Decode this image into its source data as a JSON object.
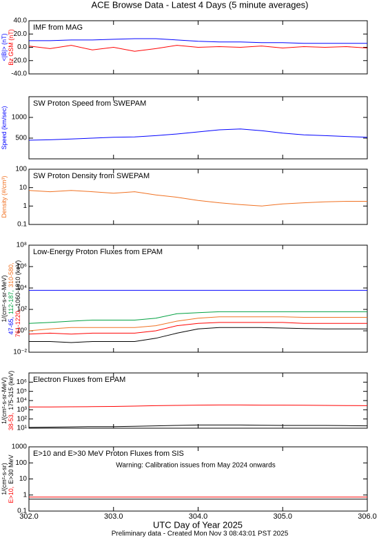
{
  "title": "ACE Browse Data - Latest 4 Days (5 minute averages)",
  "xlabel": "UTC Day of Year 2025",
  "footer": "Preliminary data - Created Mon Nov  3 08:43:01 PST 2025",
  "chart_data": [
    {
      "type": "line",
      "title": "IMF from MAG",
      "ylabel": [
        [
          {
            "text": "<|B|> (nT)",
            "color": "#0000ff"
          }
        ],
        [
          {
            "text": "Bz GSM (nT)",
            "color": "#ff0000"
          }
        ]
      ],
      "x": [
        302,
        302.25,
        302.5,
        302.75,
        303,
        303.25,
        303.5,
        303.75,
        304,
        304.25,
        304.5,
        304.75,
        305,
        305.25,
        305.5,
        305.75,
        306
      ],
      "xlim": [
        302,
        306
      ],
      "xticks": [
        302,
        303,
        304,
        305,
        306
      ],
      "ylim": [
        -40,
        40
      ],
      "yticks": [
        {
          "value": 40,
          "label": "40.0"
        },
        {
          "value": 20,
          "label": "20.0"
        },
        {
          "value": 0,
          "label": "0.0"
        },
        {
          "value": -20,
          "label": "-20.0"
        },
        {
          "value": -40,
          "label": "-40.0"
        }
      ],
      "series": [
        {
          "color": "#0000ff",
          "values": [
            10,
            10,
            11,
            11,
            12,
            13,
            13,
            11,
            9,
            8,
            8,
            7,
            7,
            6,
            6,
            6,
            6
          ]
        },
        {
          "color": "#ff0000",
          "values": [
            2,
            -2,
            3,
            -4,
            0,
            -6,
            -2,
            3,
            0,
            1,
            0,
            2,
            -1,
            1,
            0,
            1,
            -1
          ]
        }
      ]
    },
    {
      "type": "line",
      "title": "SW Proton Speed from SWEPAM",
      "ylabel": [
        [
          {
            "text": "Speed (km/sec)",
            "color": "#0000ff"
          }
        ]
      ],
      "x": [
        302,
        302.25,
        302.5,
        302.75,
        303,
        303.25,
        303.5,
        303.75,
        304,
        304.25,
        304.5,
        304.75,
        305,
        305.25,
        305.5,
        305.75,
        306
      ],
      "xlim": [
        302,
        306
      ],
      "xticks": [
        302,
        303,
        304,
        305,
        306
      ],
      "ylim": [
        0,
        1500
      ],
      "yticks": [
        500,
        1000
      ],
      "series": [
        {
          "color": "#0000ff",
          "values": [
            450,
            460,
            480,
            500,
            520,
            530,
            560,
            600,
            650,
            700,
            720,
            680,
            620,
            580,
            560,
            540,
            520
          ]
        }
      ]
    },
    {
      "type": "line",
      "title": "SW Proton Density from SWEPAM",
      "log_y": true,
      "ylabel": [
        [
          {
            "text": "Density (#/cm³)",
            "color": "#f07020"
          }
        ]
      ],
      "x": [
        302,
        302.25,
        302.5,
        302.75,
        303,
        303.25,
        303.5,
        303.75,
        304,
        304.25,
        304.5,
        304.75,
        305,
        305.25,
        305.5,
        305.75,
        306
      ],
      "xlim": [
        302,
        306
      ],
      "xticks": [
        302,
        303,
        304,
        305,
        306
      ],
      "ylim": [
        0.1,
        100
      ],
      "yticks": [
        0.1,
        1,
        10,
        100
      ],
      "series": [
        {
          "color": "#f07020",
          "values": [
            7,
            6,
            7,
            6,
            5,
            6,
            4,
            3,
            2,
            1.5,
            1.2,
            1.0,
            1.3,
            1.5,
            1.7,
            1.8,
            1.8
          ]
        }
      ]
    },
    {
      "type": "line",
      "title": "Low-Energy Proton Fluxes from EPAM",
      "log_y": true,
      "ylabel": [
        [
          {
            "text": "1/(cm²-s-sr-MeV)",
            "color": "#000000"
          }
        ],
        [
          {
            "text": "47-65,",
            "color": "#0000ff"
          },
          {
            "text": "112-187,",
            "color": "#00a040"
          },
          {
            "text": "310-580,",
            "color": "#f07020"
          }
        ],
        [
          {
            "text": "761-1220,",
            "color": "#ff0000"
          },
          {
            "text": "1060-1910 (keV)",
            "color": "#000000"
          }
        ]
      ],
      "x": [
        302,
        302.25,
        302.5,
        302.75,
        303,
        303.25,
        303.5,
        303.75,
        304,
        304.25,
        304.5,
        304.75,
        305,
        305.25,
        305.5,
        305.75,
        306
      ],
      "xlim": [
        302,
        306
      ],
      "xticks": [
        302,
        303,
        304,
        305,
        306
      ],
      "ylim": [
        0.01,
        100000000
      ],
      "yticks": [
        {
          "value": 0.01,
          "label": "10⁻²"
        },
        {
          "value": 1,
          "label": "10⁰"
        },
        {
          "value": 100,
          "label": "10²"
        },
        {
          "value": 10000,
          "label": "10⁴"
        },
        {
          "value": 1000000,
          "label": "10⁶"
        },
        {
          "value": 100000000,
          "label": "10⁸"
        }
      ],
      "series": [
        {
          "color": "#0000ff",
          "values": [
            6000,
            6000,
            6000,
            6000,
            6000,
            6000,
            6000,
            6000,
            6000,
            6000,
            6000,
            6000,
            6000,
            6000,
            6000,
            6000,
            6000
          ]
        },
        {
          "color": "#00a040",
          "values": [
            5,
            6,
            8,
            10,
            10,
            10,
            15,
            40,
            50,
            60,
            60,
            60,
            60,
            60,
            60,
            60,
            60
          ]
        },
        {
          "color": "#f07020",
          "values": [
            1,
            1.5,
            2,
            2,
            2,
            2,
            3,
            8,
            15,
            20,
            20,
            20,
            20,
            18,
            18,
            18,
            18
          ]
        },
        {
          "color": "#ff0000",
          "values": [
            0.5,
            0.6,
            0.5,
            0.6,
            0.6,
            0.6,
            1,
            3,
            5,
            6,
            6,
            6,
            6,
            5,
            5,
            5,
            5
          ]
        },
        {
          "color": "#000000",
          "values": [
            0.1,
            0.1,
            0.08,
            0.1,
            0.1,
            0.1,
            0.2,
            0.6,
            1.5,
            2,
            2,
            2,
            1.8,
            1.6,
            1.5,
            1.5,
            1.5
          ]
        }
      ]
    },
    {
      "type": "line",
      "title": "Electron Fluxes from EPAM",
      "log_y": true,
      "ylabel": [
        [
          {
            "text": "1/(cm²-s-sr-MeV)",
            "color": "#000000"
          }
        ],
        [
          {
            "text": "38-53,",
            "color": "#ff0000"
          },
          {
            "text": "175-315 (keV)",
            "color": "#000000"
          }
        ]
      ],
      "x": [
        302,
        302.25,
        302.5,
        302.75,
        303,
        303.25,
        303.5,
        303.75,
        304,
        304.25,
        304.5,
        304.75,
        305,
        305.25,
        305.5,
        305.75,
        306
      ],
      "xlim": [
        302,
        306
      ],
      "xticks": [
        302,
        303,
        304,
        305,
        306
      ],
      "ylim": [
        10,
        10000000
      ],
      "yticks": [
        {
          "value": 10,
          "label": "10¹"
        },
        {
          "value": 100,
          "label": "10²"
        },
        {
          "value": 1000,
          "label": "10³"
        },
        {
          "value": 10000,
          "label": "10⁴"
        },
        {
          "value": 100000,
          "label": "10⁵"
        },
        {
          "value": 1000000,
          "label": "10⁶"
        }
      ],
      "series": [
        {
          "color": "#ff0000",
          "values": [
            2000,
            2000,
            2100,
            2200,
            2300,
            2500,
            2800,
            3000,
            3200,
            3300,
            3300,
            3200,
            3200,
            3100,
            3000,
            2900,
            2800
          ]
        },
        {
          "color": "#000000",
          "values": [
            12,
            13,
            14,
            15,
            15,
            16,
            18,
            20,
            22,
            22,
            22,
            21,
            20,
            20,
            20,
            19,
            18
          ]
        }
      ]
    },
    {
      "type": "line",
      "title": "E>10 and E>30 MeV Proton Fluxes from SIS",
      "log_y": true,
      "annotation": "Warning: Calibration issues from May 2024 onwards",
      "annotation_color": "#e02020",
      "ylabel": [
        [
          {
            "text": "1/(cm²-s-sr)",
            "color": "#000000"
          }
        ],
        [
          {
            "text": "E>10,",
            "color": "#ff0000"
          },
          {
            "text": "E>30 MeV",
            "color": "#000000"
          }
        ]
      ],
      "x": [
        302,
        302.25,
        302.5,
        302.75,
        303,
        303.25,
        303.5,
        303.75,
        304,
        304.25,
        304.5,
        304.75,
        305,
        305.25,
        305.5,
        305.75,
        306
      ],
      "xlim": [
        302,
        306
      ],
      "xticks": [
        {
          "value": 302,
          "label": "302.0"
        },
        {
          "value": 303,
          "label": "303.0"
        },
        {
          "value": 304,
          "label": "304.0"
        },
        {
          "value": 305,
          "label": "305.0"
        },
        {
          "value": 306,
          "label": "306.0"
        }
      ],
      "ylim": [
        0.1,
        1000
      ],
      "yticks": [
        0.1,
        1,
        10,
        100,
        1000
      ],
      "series": [
        {
          "color": "#ff0000",
          "values": [
            0.75,
            0.75,
            0.75,
            0.75,
            0.75,
            0.75,
            0.75,
            0.75,
            0.75,
            0.75,
            0.75,
            0.75,
            0.75,
            0.75,
            0.75,
            0.75,
            0.75
          ]
        },
        {
          "color": "#000000",
          "values": [
            0.55,
            0.55,
            0.55,
            0.55,
            0.55,
            0.55,
            0.55,
            0.55,
            0.55,
            0.55,
            0.55,
            0.55,
            0.55,
            0.55,
            0.55,
            0.55,
            0.55
          ]
        }
      ]
    }
  ]
}
